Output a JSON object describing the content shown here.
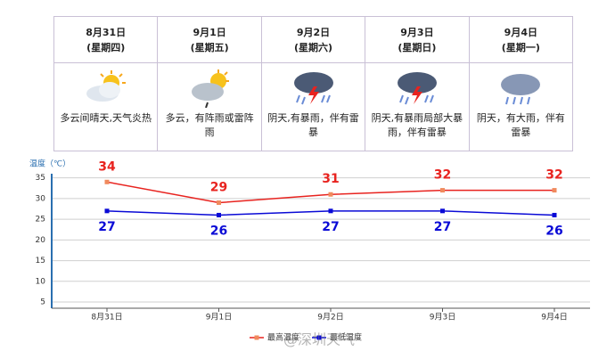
{
  "forecast": {
    "days": [
      {
        "date": "8月31日",
        "weekday": "(星期四)",
        "desc": "多云间晴天,天气炎热"
      },
      {
        "date": "9月1日",
        "weekday": "(星期五)",
        "desc": "多云，有阵雨或雷阵雨"
      },
      {
        "date": "9月2日",
        "weekday": "(星期六)",
        "desc": "阴天,有暴雨，伴有雷暴"
      },
      {
        "date": "9月3日",
        "weekday": "(星期日)",
        "desc": "阴天,有暴雨局部大暴雨，伴有雷暴"
      },
      {
        "date": "9月4日",
        "weekday": "(星期一)",
        "desc": "阴天，有大雨，伴有雷暴"
      }
    ]
  },
  "chart_data": {
    "type": "line",
    "y_label": "温度（℃）",
    "categories": [
      "8月31日",
      "9月1日",
      "9月2日",
      "9月3日",
      "9月4日"
    ],
    "series": [
      {
        "name": "最高温度",
        "color": "#e8231f",
        "marker_color": "#f08a5d",
        "values": [
          34,
          29,
          31,
          32,
          32
        ]
      },
      {
        "name": "最低温度",
        "color": "#0a0ad6",
        "marker_color": "#0a0ad6",
        "values": [
          27,
          26,
          27,
          27,
          26
        ]
      }
    ],
    "ylim": [
      3.5,
      36
    ],
    "yticks": [
      5,
      10,
      15,
      20,
      25,
      30,
      35
    ],
    "grid": true,
    "watermark": "@深圳天气"
  }
}
